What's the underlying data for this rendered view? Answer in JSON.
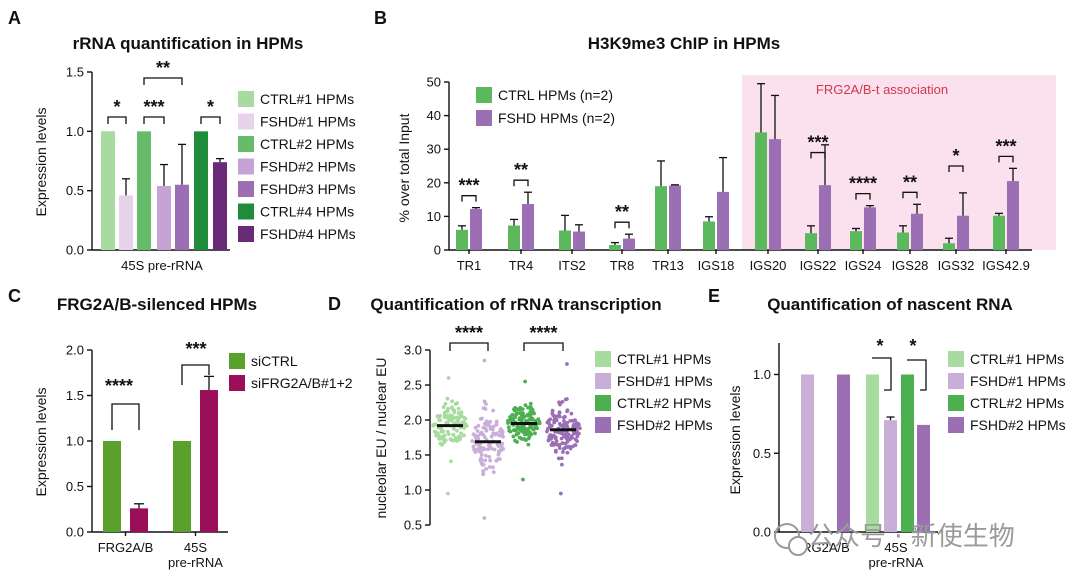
{
  "watermark": "公众号 · 新使生物",
  "chart_data": [
    {
      "id": "A",
      "panel_label": "A",
      "type": "bar",
      "title": "rRNA quantification in HPMs",
      "ylabel": "Expression levels",
      "categories": [
        "45S pre-rRNA"
      ],
      "xlabel": "",
      "ylim": [
        0,
        1.5
      ],
      "yticks": [
        "0.0",
        "0.5",
        "1.0",
        "1.5"
      ],
      "series": [
        {
          "name": "CTRL#1 HPMs",
          "color": "#a8dba0",
          "value": 1.0,
          "err": 0
        },
        {
          "name": "FSHD#1 HPMs",
          "color": "#e6d3ea",
          "value": 0.46,
          "err": 0.14
        },
        {
          "name": "CTRL#2 HPMs",
          "color": "#66bb6a",
          "value": 1.0,
          "err": 0
        },
        {
          "name": "FSHD#2 HPMs",
          "color": "#c5a3d4",
          "value": 0.54,
          "err": 0.18
        },
        {
          "name": "FSHD#3 HPMs",
          "color": "#9c6fb5",
          "value": 0.55,
          "err": 0.34
        },
        {
          "name": "CTRL#4 HPMs",
          "color": "#1e8c3a",
          "value": 1.0,
          "err": 0
        },
        {
          "name": "FSHD#4 HPMs",
          "color": "#6a2a78",
          "value": 0.74,
          "err": 0.03
        }
      ],
      "significance": [
        {
          "from": 0,
          "to": 1,
          "label": "*"
        },
        {
          "from": 2,
          "to": 3,
          "label": "***"
        },
        {
          "from": 2,
          "to": 4,
          "label": "**"
        },
        {
          "from": 5,
          "to": 6,
          "label": "*"
        }
      ]
    },
    {
      "id": "B",
      "panel_label": "B",
      "type": "bar",
      "title": "H3K9me3 ChIP in HPMs",
      "ylabel": "% over total Input",
      "xlabel": "",
      "ylim": [
        0,
        50
      ],
      "yticks": [
        "0",
        "10",
        "20",
        "30",
        "40",
        "50"
      ],
      "categories": [
        "TR1",
        "TR4",
        "ITS2",
        "TR8",
        "TR13",
        "IGS18",
        "IGS20",
        "IGS22",
        "IGS24",
        "IGS28",
        "IGS32",
        "IGS42.9"
      ],
      "series": [
        {
          "name": "CTRL HPMs (n=2)",
          "color": "#5cb85c",
          "values": [
            6,
            7.3,
            5.8,
            1.5,
            19,
            8.5,
            35,
            5,
            5.6,
            5.2,
            2.0,
            10.2
          ],
          "errors": [
            1.2,
            1.8,
            4.5,
            0.7,
            7.5,
            1.4,
            14.5,
            2.2,
            0.8,
            2.0,
            1.5,
            0.7
          ]
        },
        {
          "name": "FSHD HPMs (n=2)",
          "color": "#9c6fb5",
          "values": [
            12.2,
            13.7,
            5.5,
            3.4,
            19.2,
            17.3,
            33,
            19.3,
            12.7,
            10.8,
            10.2,
            20.5
          ],
          "errors": [
            0.4,
            3.5,
            2.0,
            1.3,
            0.2,
            10.2,
            13,
            12,
            0.5,
            2.8,
            6.8,
            3.8
          ]
        }
      ],
      "highlight": {
        "label": "FRG2A/B-t association",
        "from": 6,
        "to": 11,
        "color": "#fbe0ee"
      },
      "significance": [
        {
          "cat": 0,
          "label": "***"
        },
        {
          "cat": 1,
          "label": "**"
        },
        {
          "cat": 3,
          "label": "**"
        },
        {
          "cat": 7,
          "label": "***"
        },
        {
          "cat": 8,
          "label": "****"
        },
        {
          "cat": 9,
          "label": "**"
        },
        {
          "cat": 10,
          "label": "*"
        },
        {
          "cat": 11,
          "label": "***"
        }
      ]
    },
    {
      "id": "C",
      "panel_label": "C",
      "type": "bar",
      "title": "FRG2A/B-silenced HPMs",
      "ylabel": "Expression levels",
      "xlabel": "",
      "ylim": [
        0,
        2.0
      ],
      "yticks": [
        "0.0",
        "0.5",
        "1.0",
        "1.5",
        "2.0"
      ],
      "categories": [
        "FRG2A/B",
        "45S pre-rRNA"
      ],
      "category_lines": [
        [
          "FRG2A/B"
        ],
        [
          "45S",
          "pre-rRNA"
        ]
      ],
      "series": [
        {
          "name": "siCTRL",
          "color": "#5aa02c",
          "values": [
            1.0,
            1.0
          ],
          "errors": [
            0,
            0
          ]
        },
        {
          "name": "siFRG2A/B#1+2",
          "color": "#9b0f5a",
          "values": [
            0.26,
            1.56
          ],
          "errors": [
            0.05,
            0.15
          ]
        }
      ],
      "significance": [
        {
          "cat": 0,
          "label": "****"
        },
        {
          "cat": 1,
          "label": "***"
        }
      ]
    },
    {
      "id": "D",
      "panel_label": "D",
      "type": "scatter",
      "title": "Quantification of rRNA transcription",
      "ylabel": "nucleolar EU / nuclear EU",
      "xlabel": "",
      "ylim": [
        0.5,
        3.0
      ],
      "yticks": [
        "0.5",
        "1.0",
        "1.5",
        "2.0",
        "2.5",
        "3.0"
      ],
      "series": [
        {
          "name": "CTRL#1 HPMs",
          "color": "#a8dba0",
          "median": 1.92,
          "spread": 0.2,
          "n": 110,
          "min": 0.95,
          "max": 2.6
        },
        {
          "name": "FSHD#1 HPMs",
          "color": "#c9aed8",
          "median": 1.69,
          "spread": 0.28,
          "n": 110,
          "min": 0.6,
          "max": 2.85
        },
        {
          "name": "CTRL#2 HPMs",
          "color": "#4caf50",
          "median": 1.95,
          "spread": 0.18,
          "n": 130,
          "min": 1.15,
          "max": 2.55
        },
        {
          "name": "FSHD#2 HPMs",
          "color": "#9c6fb5",
          "median": 1.86,
          "spread": 0.24,
          "n": 130,
          "min": 0.95,
          "max": 2.8
        }
      ],
      "significance": [
        {
          "from": 0,
          "to": 1,
          "label": "****"
        },
        {
          "from": 2,
          "to": 3,
          "label": "****"
        }
      ]
    },
    {
      "id": "E",
      "panel_label": "E",
      "type": "bar",
      "title": "Quantification of nascent RNA",
      "ylabel": "Expression levels",
      "xlabel": "",
      "ylim": [
        0,
        1.2
      ],
      "yticks": [
        "0.0",
        "0.5",
        "1.0"
      ],
      "categories": [
        "FRG2A/B",
        "45S pre-rRNA"
      ],
      "category_lines": [
        [
          "FRG2A/B"
        ],
        [
          "45S",
          "pre-rRNA"
        ]
      ],
      "series": [
        {
          "name": "CTRL#1 HPMs",
          "color": "#a8dba0",
          "values": [
            null,
            1.0
          ],
          "errors": [
            0,
            0
          ]
        },
        {
          "name": "FSHD#1 HPMs",
          "color": "#c9aed8",
          "values": [
            1.0,
            0.71
          ],
          "errors": [
            0,
            0.02
          ]
        },
        {
          "name": "CTRL#2 HPMs",
          "color": "#4caf50",
          "values": [
            null,
            1.0
          ],
          "errors": [
            0,
            0
          ]
        },
        {
          "name": "FSHD#2 HPMs",
          "color": "#9c6fb5",
          "values": [
            1.0,
            0.68
          ],
          "errors": [
            0,
            0
          ]
        }
      ],
      "significance": [
        {
          "from": 0,
          "to": 1,
          "label": "*"
        },
        {
          "from": 2,
          "to": 3,
          "label": "*"
        }
      ]
    }
  ]
}
